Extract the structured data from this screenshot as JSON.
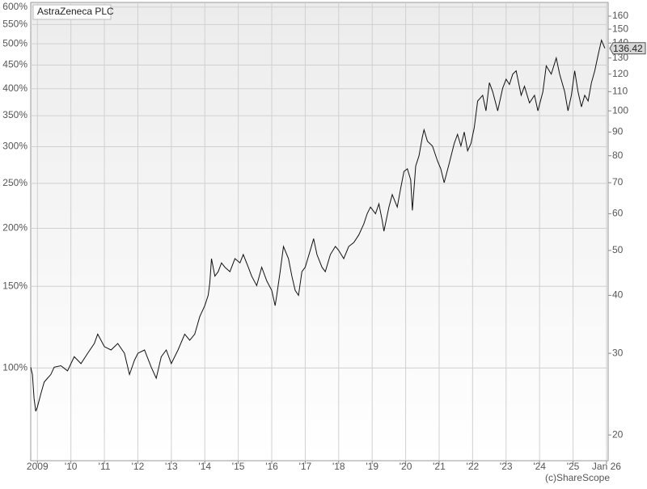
{
  "chart_data": {
    "type": "line",
    "title": "AstraZeneca PLC",
    "credit": "(c)ShareScope",
    "log_scale": true,
    "grid": true,
    "x": [
      2008.8,
      2008.85,
      2008.9,
      2008.95,
      2009.0,
      2009.1,
      2009.2,
      2009.3,
      2009.4,
      2009.5,
      2009.7,
      2009.9,
      2010.0,
      2010.1,
      2010.3,
      2010.5,
      2010.7,
      2010.8,
      2011.0,
      2011.2,
      2011.4,
      2011.6,
      2011.75,
      2011.9,
      2012.0,
      2012.2,
      2012.4,
      2012.55,
      2012.7,
      2012.85,
      2013.0,
      2013.2,
      2013.4,
      2013.55,
      2013.7,
      2013.85,
      2014.0,
      2014.1,
      2014.15,
      2014.2,
      2014.3,
      2014.4,
      2014.5,
      2014.6,
      2014.75,
      2014.9,
      2015.05,
      2015.15,
      2015.3,
      2015.4,
      2015.55,
      2015.7,
      2015.85,
      2016.0,
      2016.1,
      2016.15,
      2016.25,
      2016.35,
      2016.5,
      2016.6,
      2016.7,
      2016.8,
      2016.9,
      2017.0,
      2017.15,
      2017.25,
      2017.35,
      2017.5,
      2017.6,
      2017.75,
      2017.9,
      2018.0,
      2018.15,
      2018.3,
      2018.45,
      2018.6,
      2018.75,
      2018.85,
      2018.95,
      2019.1,
      2019.2,
      2019.3,
      2019.35,
      2019.5,
      2019.6,
      2019.75,
      2019.85,
      2019.95,
      2020.05,
      2020.15,
      2020.2,
      2020.3,
      2020.4,
      2020.5,
      2020.55,
      2020.65,
      2020.8,
      2020.95,
      2021.05,
      2021.15,
      2021.3,
      2021.45,
      2021.55,
      2021.65,
      2021.75,
      2021.85,
      2021.95,
      2022.05,
      2022.15,
      2022.3,
      2022.4,
      2022.5,
      2022.6,
      2022.75,
      2022.9,
      2023.0,
      2023.1,
      2023.2,
      2023.3,
      2023.45,
      2023.55,
      2023.7,
      2023.85,
      2023.95,
      2024.1,
      2024.2,
      2024.35,
      2024.5,
      2024.6,
      2024.75,
      2024.85,
      2024.95,
      2025.05,
      2025.15,
      2025.25,
      2025.35,
      2025.45,
      2025.55,
      2025.65,
      2025.75,
      2025.85,
      2025.95
    ],
    "series": [
      {
        "name": "AstraZeneca PLC",
        "color": "#111111",
        "axis": "y2",
        "values": [
          28,
          27,
          24,
          22.5,
          23,
          24.5,
          26,
          26.5,
          27,
          28,
          28.2,
          27.5,
          28.5,
          29.5,
          28.5,
          30,
          31.5,
          33,
          31,
          30.5,
          31.5,
          30,
          27,
          29,
          30,
          30.5,
          28,
          26.5,
          29.5,
          30.5,
          28.5,
          30.5,
          33,
          32,
          33,
          36,
          38,
          40,
          42.5,
          48,
          44,
          45,
          47,
          46,
          45,
          48,
          47,
          49,
          46,
          44,
          42,
          46,
          43,
          41,
          38,
          40,
          45,
          51,
          48,
          44,
          41,
          40,
          45,
          46,
          50,
          53,
          49,
          46,
          45,
          49,
          51,
          50,
          48,
          51,
          52,
          54,
          57,
          60,
          62,
          60,
          63,
          58,
          55,
          62,
          66,
          62,
          68,
          74,
          75,
          71,
          61,
          76,
          80,
          88,
          91,
          86,
          84,
          78,
          75,
          70,
          77,
          85,
          89,
          84,
          90,
          82,
          85,
          92,
          105,
          108,
          100,
          115,
          110,
          100,
          112,
          117,
          114,
          120,
          122,
          108,
          113,
          104,
          108,
          100,
          110,
          125,
          120,
          130,
          120,
          110,
          100,
          108,
          122,
          110,
          102,
          108,
          105,
          115,
          122,
          132,
          142,
          136.42
        ]
      }
    ],
    "xlim": [
      2008.8,
      2026.05
    ],
    "xticks": [
      {
        "value": 2009,
        "label": "2009"
      },
      {
        "value": 2010,
        "label": "'10"
      },
      {
        "value": 2011,
        "label": "'11"
      },
      {
        "value": 2012,
        "label": "'12"
      },
      {
        "value": 2013,
        "label": "'13"
      },
      {
        "value": 2014,
        "label": "'14"
      },
      {
        "value": 2015,
        "label": "'15"
      },
      {
        "value": 2016,
        "label": "'16"
      },
      {
        "value": 2017,
        "label": "'17"
      },
      {
        "value": 2018,
        "label": "'18"
      },
      {
        "value": 2019,
        "label": "'19"
      },
      {
        "value": 2020,
        "label": "'20"
      },
      {
        "value": 2021,
        "label": "'21"
      },
      {
        "value": 2022,
        "label": "'22"
      },
      {
        "value": 2023,
        "label": "'23"
      },
      {
        "value": 2024,
        "label": "'24"
      },
      {
        "value": 2025,
        "label": "'25"
      },
      {
        "value": 2026,
        "label": "Jan 26"
      }
    ],
    "ylim": [
      63.1,
      614
    ],
    "yticks": [
      {
        "value": 600,
        "label": "600%"
      },
      {
        "value": 550,
        "label": "550%"
      },
      {
        "value": 500,
        "label": "500%"
      },
      {
        "value": 450,
        "label": "450%"
      },
      {
        "value": 400,
        "label": "400%"
      },
      {
        "value": 350,
        "label": "350%"
      },
      {
        "value": 300,
        "label": "300%"
      },
      {
        "value": 250,
        "label": "250%"
      },
      {
        "value": 200,
        "label": "200%"
      },
      {
        "value": 150,
        "label": "150%"
      },
      {
        "value": 100,
        "label": "100%"
      }
    ],
    "y2lim": [
      17.6,
      171.3
    ],
    "y2ticks": [
      160,
      150,
      140,
      130,
      120,
      110,
      100,
      90,
      80,
      70,
      60,
      50,
      40,
      30,
      20
    ]
  }
}
